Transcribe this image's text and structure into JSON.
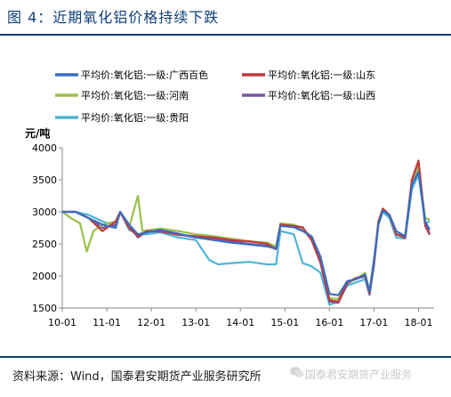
{
  "figure_title": "图 4：近期氧化铝价格持续下跌",
  "source_note": "资料来源：Wind，国泰君安期货产业服务研究所",
  "watermark": "国泰君安期货产业服务",
  "chart_data": {
    "type": "line",
    "ylabel": "元/吨",
    "ylim": [
      1500,
      4000
    ],
    "yticks": [
      1500,
      2000,
      2500,
      3000,
      3500,
      4000
    ],
    "x_tick_labels": [
      "10-01",
      "11-01",
      "12-01",
      "13-01",
      "14-01",
      "15-01",
      "16-01",
      "17-01",
      "18-01"
    ],
    "grid": false,
    "legend_position": "top",
    "series": [
      {
        "name": "平均价:氧化铝:一级:广西百色",
        "color": "#3a6cc0",
        "points": [
          [
            2010.0,
            3000
          ],
          [
            2010.3,
            3000
          ],
          [
            2010.6,
            2900
          ],
          [
            2010.9,
            2800
          ],
          [
            2011.2,
            2750
          ],
          [
            2011.3,
            3000
          ],
          [
            2011.5,
            2800
          ],
          [
            2011.7,
            2650
          ],
          [
            2011.9,
            2680
          ],
          [
            2012.2,
            2720
          ],
          [
            2012.6,
            2660
          ],
          [
            2013.0,
            2600
          ],
          [
            2013.4,
            2560
          ],
          [
            2013.8,
            2520
          ],
          [
            2014.2,
            2490
          ],
          [
            2014.6,
            2460
          ],
          [
            2014.8,
            2430
          ],
          [
            2014.9,
            2780
          ],
          [
            2015.2,
            2760
          ],
          [
            2015.4,
            2700
          ],
          [
            2015.6,
            2620
          ],
          [
            2015.8,
            2300
          ],
          [
            2016.0,
            1720
          ],
          [
            2016.2,
            1700
          ],
          [
            2016.4,
            1920
          ],
          [
            2016.6,
            1950
          ],
          [
            2016.8,
            2020
          ],
          [
            2016.9,
            1760
          ],
          [
            2017.0,
            2250
          ],
          [
            2017.1,
            2800
          ],
          [
            2017.2,
            3020
          ],
          [
            2017.35,
            2950
          ],
          [
            2017.5,
            2700
          ],
          [
            2017.7,
            2620
          ],
          [
            2017.85,
            3420
          ],
          [
            2018.0,
            3620
          ],
          [
            2018.15,
            2850
          ],
          [
            2018.25,
            2720
          ]
        ]
      },
      {
        "name": "平均价:氧化铝:一级:山东",
        "color": "#c0393b",
        "points": [
          [
            2010.0,
            3000
          ],
          [
            2010.3,
            3000
          ],
          [
            2010.6,
            2900
          ],
          [
            2010.9,
            2700
          ],
          [
            2011.2,
            2850
          ],
          [
            2011.3,
            3000
          ],
          [
            2011.5,
            2750
          ],
          [
            2011.7,
            2620
          ],
          [
            2011.9,
            2700
          ],
          [
            2012.2,
            2700
          ],
          [
            2012.6,
            2640
          ],
          [
            2013.0,
            2620
          ],
          [
            2013.4,
            2600
          ],
          [
            2013.8,
            2560
          ],
          [
            2014.2,
            2540
          ],
          [
            2014.6,
            2500
          ],
          [
            2014.8,
            2420
          ],
          [
            2014.9,
            2800
          ],
          [
            2015.2,
            2780
          ],
          [
            2015.4,
            2760
          ],
          [
            2015.6,
            2560
          ],
          [
            2015.8,
            2220
          ],
          [
            2016.0,
            1620
          ],
          [
            2016.2,
            1600
          ],
          [
            2016.4,
            1900
          ],
          [
            2016.6,
            1970
          ],
          [
            2016.8,
            2000
          ],
          [
            2016.9,
            1730
          ],
          [
            2017.0,
            2200
          ],
          [
            2017.1,
            2850
          ],
          [
            2017.2,
            3050
          ],
          [
            2017.35,
            2950
          ],
          [
            2017.5,
            2650
          ],
          [
            2017.7,
            2600
          ],
          [
            2017.85,
            3500
          ],
          [
            2018.0,
            3800
          ],
          [
            2018.15,
            2800
          ],
          [
            2018.25,
            2660
          ]
        ]
      },
      {
        "name": "平均价:氧化铝:一级:河南",
        "color": "#9abf4c",
        "points": [
          [
            2010.0,
            3000
          ],
          [
            2010.2,
            2900
          ],
          [
            2010.4,
            2820
          ],
          [
            2010.55,
            2380
          ],
          [
            2010.7,
            2700
          ],
          [
            2010.9,
            2800
          ],
          [
            2011.2,
            2850
          ],
          [
            2011.3,
            3000
          ],
          [
            2011.5,
            2760
          ],
          [
            2011.7,
            3250
          ],
          [
            2011.8,
            2700
          ],
          [
            2012.0,
            2720
          ],
          [
            2012.2,
            2740
          ],
          [
            2012.6,
            2700
          ],
          [
            2013.0,
            2650
          ],
          [
            2013.4,
            2620
          ],
          [
            2013.8,
            2580
          ],
          [
            2014.2,
            2540
          ],
          [
            2014.6,
            2520
          ],
          [
            2014.8,
            2460
          ],
          [
            2014.9,
            2820
          ],
          [
            2015.2,
            2800
          ],
          [
            2015.4,
            2740
          ],
          [
            2015.6,
            2600
          ],
          [
            2015.8,
            2250
          ],
          [
            2016.0,
            1650
          ],
          [
            2016.2,
            1640
          ],
          [
            2016.4,
            1900
          ],
          [
            2016.6,
            1950
          ],
          [
            2016.8,
            2050
          ],
          [
            2016.9,
            1760
          ],
          [
            2017.0,
            2250
          ],
          [
            2017.1,
            2850
          ],
          [
            2017.2,
            3050
          ],
          [
            2017.35,
            2950
          ],
          [
            2017.5,
            2650
          ],
          [
            2017.7,
            2630
          ],
          [
            2017.85,
            3450
          ],
          [
            2018.0,
            3700
          ],
          [
            2018.15,
            2900
          ],
          [
            2018.25,
            2880
          ]
        ]
      },
      {
        "name": "平均价:氧化铝:一级:山西",
        "color": "#7955a5",
        "points": [
          [
            2010.0,
            3000
          ],
          [
            2010.3,
            3000
          ],
          [
            2010.6,
            2900
          ],
          [
            2010.9,
            2750
          ],
          [
            2011.2,
            2800
          ],
          [
            2011.3,
            3000
          ],
          [
            2011.5,
            2780
          ],
          [
            2011.7,
            2600
          ],
          [
            2011.9,
            2700
          ],
          [
            2012.2,
            2690
          ],
          [
            2012.6,
            2650
          ],
          [
            2013.0,
            2600
          ],
          [
            2013.4,
            2580
          ],
          [
            2013.8,
            2540
          ],
          [
            2014.2,
            2500
          ],
          [
            2014.6,
            2470
          ],
          [
            2014.8,
            2420
          ],
          [
            2014.9,
            2790
          ],
          [
            2015.2,
            2760
          ],
          [
            2015.4,
            2740
          ],
          [
            2015.6,
            2560
          ],
          [
            2015.8,
            2200
          ],
          [
            2016.0,
            1600
          ],
          [
            2016.2,
            1580
          ],
          [
            2016.4,
            1880
          ],
          [
            2016.6,
            1960
          ],
          [
            2016.8,
            1990
          ],
          [
            2016.9,
            1720
          ],
          [
            2017.0,
            2200
          ],
          [
            2017.1,
            2820
          ],
          [
            2017.2,
            3030
          ],
          [
            2017.35,
            2940
          ],
          [
            2017.5,
            2650
          ],
          [
            2017.7,
            2600
          ],
          [
            2017.85,
            3480
          ],
          [
            2018.0,
            3760
          ],
          [
            2018.15,
            2780
          ],
          [
            2018.25,
            2640
          ]
        ]
      },
      {
        "name": "平均价:氧化铝:一级:贵阳",
        "color": "#4fb3d6",
        "points": [
          [
            2010.0,
            3000
          ],
          [
            2010.3,
            3000
          ],
          [
            2010.6,
            2950
          ],
          [
            2010.9,
            2850
          ],
          [
            2011.2,
            2780
          ],
          [
            2011.3,
            3000
          ],
          [
            2011.5,
            2720
          ],
          [
            2011.7,
            2650
          ],
          [
            2011.9,
            2650
          ],
          [
            2012.2,
            2680
          ],
          [
            2012.6,
            2600
          ],
          [
            2013.0,
            2560
          ],
          [
            2013.3,
            2250
          ],
          [
            2013.5,
            2180
          ],
          [
            2013.8,
            2200
          ],
          [
            2014.2,
            2220
          ],
          [
            2014.6,
            2180
          ],
          [
            2014.8,
            2180
          ],
          [
            2014.9,
            2700
          ],
          [
            2015.2,
            2650
          ],
          [
            2015.4,
            2200
          ],
          [
            2015.6,
            2150
          ],
          [
            2015.8,
            2050
          ],
          [
            2016.0,
            1550
          ],
          [
            2016.2,
            1600
          ],
          [
            2016.4,
            1850
          ],
          [
            2016.6,
            1900
          ],
          [
            2016.8,
            1950
          ],
          [
            2016.9,
            1700
          ],
          [
            2017.0,
            2150
          ],
          [
            2017.1,
            2800
          ],
          [
            2017.2,
            3000
          ],
          [
            2017.35,
            2900
          ],
          [
            2017.5,
            2600
          ],
          [
            2017.7,
            2580
          ],
          [
            2017.85,
            3350
          ],
          [
            2018.0,
            3580
          ],
          [
            2018.15,
            2820
          ],
          [
            2018.25,
            2860
          ]
        ]
      }
    ]
  }
}
